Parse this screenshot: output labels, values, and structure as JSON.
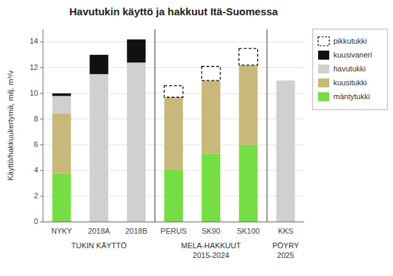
{
  "chart_data": {
    "type": "bar",
    "stacked": true,
    "title": "Havutukin käyttö ja hakkuut Itä-Suomessa",
    "ylabel": "Käyttö/hakkuukertymä, milj. m³/v",
    "categories": [
      "NYKY",
      "2018A",
      "2018B",
      "PERUS",
      "SK90",
      "SK100",
      "KKS"
    ],
    "series": [
      {
        "name": "mäntytukki",
        "color": "#77dd44",
        "values": [
          3.8,
          0,
          0,
          4.05,
          5.3,
          6.0,
          0
        ]
      },
      {
        "name": "kuusitukki",
        "color": "#c8b87a",
        "values": [
          4.65,
          0,
          0,
          5.65,
          5.7,
          6.2,
          0
        ]
      },
      {
        "name": "havutukki",
        "color": "#d0d0d0",
        "values": [
          1.35,
          11.5,
          12.4,
          0,
          0,
          0,
          11.0
        ]
      },
      {
        "name": "kuusivaneri",
        "color": "#111111",
        "values": [
          0.2,
          1.5,
          1.8,
          0,
          0,
          0,
          0
        ]
      },
      {
        "name": "pikkutukki",
        "color": "#ffffff",
        "line_style": "dashed",
        "values": [
          0,
          0,
          0,
          0.9,
          1.1,
          1.3,
          0
        ]
      }
    ],
    "groups": [
      {
        "label": "TUKIN KÄYTTÖ",
        "categories": [
          "NYKY",
          "2018A",
          "2018B"
        ]
      },
      {
        "label": "MELA-HAKKUUT\n2015-2024",
        "categories": [
          "PERUS",
          "SK90",
          "SK100"
        ]
      },
      {
        "label": "PÖYRY\n2025",
        "categories": [
          "KKS"
        ]
      }
    ],
    "ylim": [
      0,
      15
    ],
    "yticks": [
      0,
      2,
      4,
      6,
      8,
      10,
      12,
      14
    ],
    "grid": true,
    "legend": "right"
  }
}
